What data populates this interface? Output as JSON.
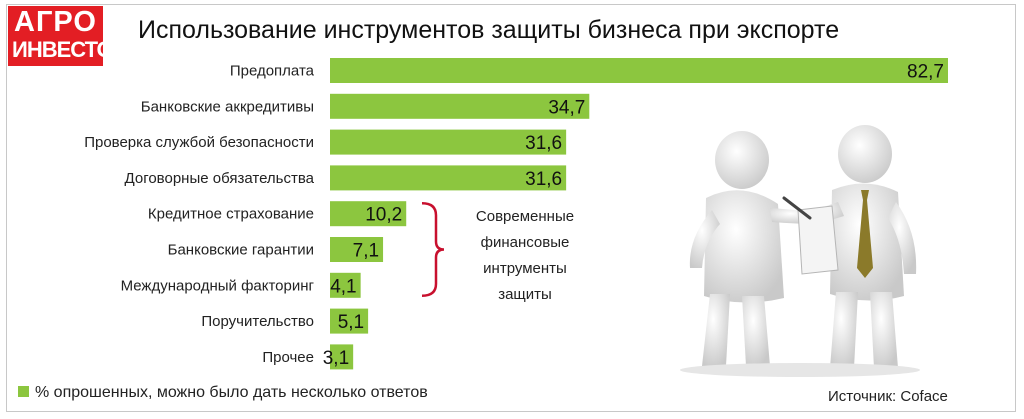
{
  "logo": {
    "line1": "АГРО",
    "line2": "ИНВЕСТОР"
  },
  "title": "Использование инструментов защиты бизнеса при экспорте",
  "note": [
    "Современные",
    "финансовые",
    "интрументы",
    "защиты"
  ],
  "legend": {
    "label": "% опрошенных, можно было дать несколько ответов",
    "color": "#8cc63f"
  },
  "source": "Источник: Coface",
  "illustration": {
    "icon": "business-handshake-figures-icon"
  },
  "chart_data": {
    "type": "bar",
    "orientation": "horizontal",
    "title": "Использование инструментов защиты бизнеса при экспорте",
    "categories": [
      "Предоплата",
      "Банковские аккредитивы",
      "Проверка службой безопасности",
      "Договорные обязательства",
      "Кредитное страхование",
      "Банковские гарантии",
      "Международный факторинг",
      "Поручительство",
      "Прочее"
    ],
    "values": [
      82.7,
      34.7,
      31.6,
      31.6,
      10.2,
      7.1,
      4.1,
      5.1,
      3.1
    ],
    "value_labels": [
      "82,7",
      "34,7",
      "31,6",
      "31,6",
      "10,2",
      "7,1",
      "4,1",
      "5,1",
      "3,1"
    ],
    "xlim": [
      0,
      82.7
    ],
    "bar_color": "#8cc63f",
    "bracket_color": "#c8102e",
    "grid": false
  }
}
